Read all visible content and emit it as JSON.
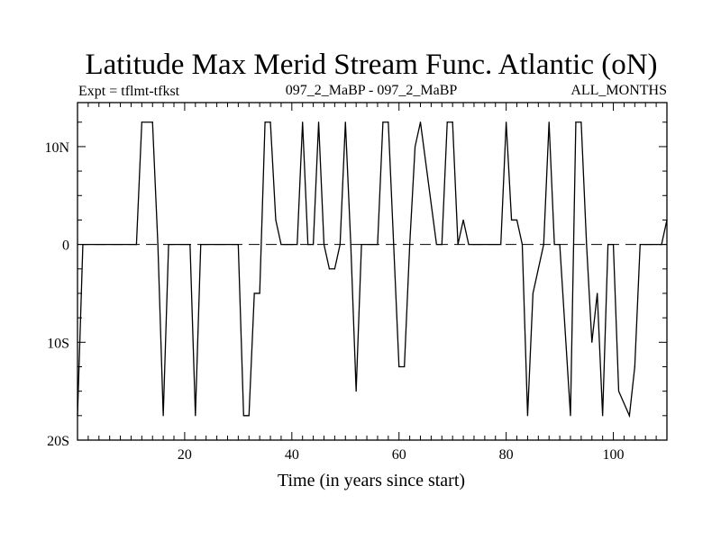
{
  "chart_data": {
    "type": "line",
    "title": "Latitude Max Merid Stream Func. Atlantic (oN)",
    "subtitle_left": "Expt = tflmt-tfkst",
    "subtitle_center": "097_2_MaBP - 097_2_MaBP",
    "subtitle_right": "ALL_MONTHS",
    "xlabel": "Time (in years since start)",
    "ylabel": "",
    "xlim": [
      0,
      110
    ],
    "ylim": [
      -20,
      14.5
    ],
    "xticks": [
      {
        "value": 20,
        "label": "20"
      },
      {
        "value": 40,
        "label": "40"
      },
      {
        "value": 60,
        "label": "60"
      },
      {
        "value": 80,
        "label": "80"
      },
      {
        "value": 100,
        "label": "100"
      }
    ],
    "yticks": [
      {
        "value": 10,
        "label": "10N"
      },
      {
        "value": 0,
        "label": "0"
      },
      {
        "value": -10,
        "label": "10S"
      },
      {
        "value": -20,
        "label": "20S"
      }
    ],
    "zero_line": "dashed",
    "grid": false,
    "series": [
      {
        "name": "",
        "x": [
          0,
          1,
          11,
          12,
          14,
          15,
          16,
          17,
          21,
          22,
          23,
          30,
          31,
          32,
          33,
          34,
          35,
          36,
          37,
          38,
          39,
          40,
          41,
          42,
          43,
          44,
          45,
          46,
          47,
          48,
          49,
          50,
          51,
          52,
          53,
          56,
          57,
          58,
          59,
          60,
          61,
          62,
          63,
          64,
          67,
          68,
          69,
          70,
          71,
          72,
          73,
          74,
          79,
          80,
          81,
          82,
          83,
          84,
          85,
          87,
          88,
          89,
          90,
          92,
          93,
          94,
          95,
          96,
          97,
          98,
          99,
          100,
          101,
          103,
          104,
          105,
          106,
          108,
          109,
          110
        ],
        "y": [
          -17.5,
          0,
          0,
          12.5,
          12.5,
          0,
          -17.5,
          0,
          0,
          -17.5,
          0,
          0,
          -17.5,
          -17.5,
          -5,
          -5,
          12.5,
          12.5,
          2.5,
          0,
          0,
          0,
          0,
          12.5,
          0,
          0,
          12.5,
          0,
          -2.5,
          -2.5,
          0,
          12.5,
          0,
          -15,
          0,
          0,
          12.5,
          12.5,
          0,
          -12.5,
          -12.5,
          0,
          10,
          12.5,
          0,
          0,
          12.5,
          12.5,
          0,
          2.5,
          0,
          0,
          0,
          12.5,
          2.5,
          2.5,
          0,
          -17.5,
          -5,
          0,
          12.5,
          0,
          0,
          -17.5,
          12.5,
          12.5,
          0,
          -10,
          -5,
          -17.5,
          0,
          0,
          -15,
          -17.5,
          -12.5,
          0,
          0,
          0,
          0,
          2.5
        ]
      }
    ]
  }
}
